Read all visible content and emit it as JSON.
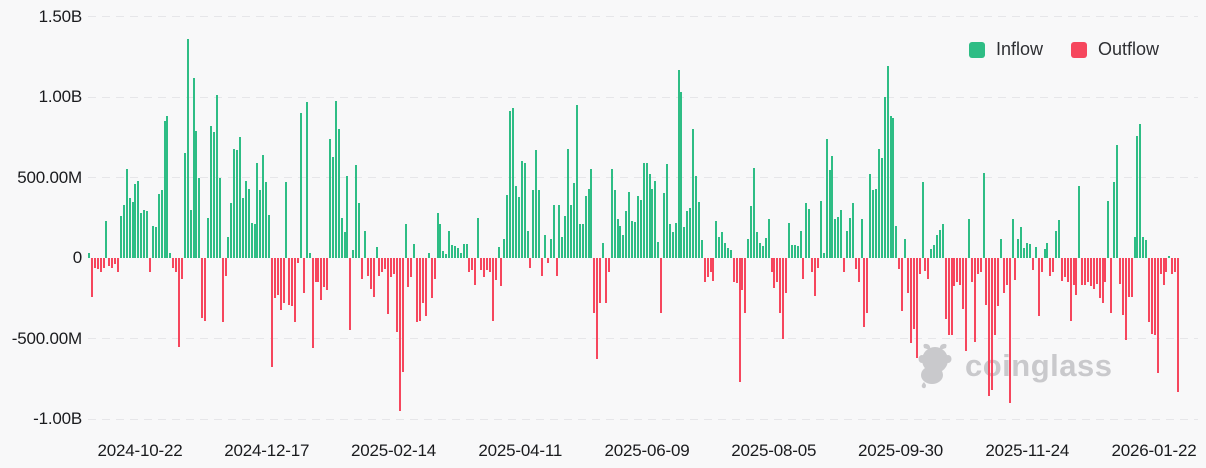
{
  "chart_data": {
    "type": "bar",
    "title": "",
    "unit": "USD",
    "value_unit": "millions USD per day",
    "grid": "dashed-horizontal",
    "legend_position": "top-right",
    "legend": [
      {
        "label": "Inflow",
        "color": "#2ebd85"
      },
      {
        "label": "Outflow",
        "color": "#f6465d"
      }
    ],
    "y_ticks": [
      {
        "label": "1.50B",
        "value": 1500
      },
      {
        "label": "1.00B",
        "value": 1000
      },
      {
        "label": "500.00M",
        "value": 500
      },
      {
        "label": "0",
        "value": 0
      },
      {
        "label": "-500.00M",
        "value": -500
      },
      {
        "label": "-1.00B",
        "value": -1000
      }
    ],
    "ylim": [
      -1000,
      1500
    ],
    "x_ticks": [
      "2024-10-22",
      "2024-12-17",
      "2025-02-14",
      "2025-04-11",
      "2025-06-09",
      "2025-08-05",
      "2025-09-30",
      "2025-11-24",
      "2026-01-22"
    ],
    "values": [
      30,
      -240,
      -60,
      -70,
      -90,
      -60,
      230,
      -50,
      -60,
      -40,
      -90,
      260,
      330,
      550,
      370,
      350,
      460,
      480,
      280,
      300,
      290,
      -90,
      200,
      190,
      400,
      420,
      850,
      880,
      30,
      -60,
      -90,
      -550,
      -130,
      650,
      1360,
      300,
      1120,
      790,
      500,
      -370,
      -390,
      250,
      820,
      780,
      1010,
      500,
      -400,
      -110,
      130,
      340,
      680,
      670,
      750,
      370,
      480,
      430,
      220,
      210,
      590,
      420,
      640,
      470,
      270,
      -680,
      -250,
      -230,
      -320,
      -280,
      470,
      -290,
      -300,
      -400,
      -30,
      900,
      -220,
      970,
      30,
      -560,
      -150,
      -150,
      -260,
      -180,
      -200,
      740,
      630,
      975,
      800,
      250,
      160,
      510,
      -450,
      50,
      580,
      340,
      -130,
      170,
      -110,
      -190,
      -240,
      70,
      -110,
      -90,
      -70,
      -350,
      -120,
      -100,
      -460,
      -950,
      -710,
      210,
      -180,
      -120,
      90,
      -400,
      -390,
      -280,
      -360,
      30,
      -250,
      -130,
      280,
      210,
      45,
      25,
      170,
      80,
      75,
      65,
      30,
      90,
      90,
      -90,
      -75,
      -170,
      250,
      -75,
      -120,
      -75,
      -90,
      -390,
      -135,
      70,
      -175,
      120,
      390,
      915,
      930,
      450,
      380,
      600,
      590,
      170,
      -60,
      420,
      670,
      420,
      -110,
      145,
      -30,
      120,
      330,
      -110,
      330,
      130,
      260,
      680,
      330,
      465,
      950,
      210,
      210,
      385,
      430,
      550,
      -340,
      -630,
      -280,
      95,
      -280,
      -90,
      555,
      420,
      240,
      200,
      140,
      290,
      410,
      230,
      225,
      385,
      360,
      590,
      590,
      520,
      430,
      480,
      100,
      -340,
      405,
      585,
      210,
      160,
      220,
      1170,
      1030,
      195,
      295,
      310,
      800,
      510,
      350,
      110,
      -150,
      -120,
      -85,
      -145,
      230,
      130,
      160,
      95,
      60,
      50,
      -150,
      -155,
      -770,
      -200,
      -340,
      115,
      320,
      560,
      160,
      95,
      75,
      125,
      240,
      -90,
      -185,
      -150,
      -340,
      -500,
      -220,
      215,
      80,
      80,
      75,
      170,
      -130,
      340,
      305,
      -90,
      -235,
      -60,
      355,
      30,
      740,
      545,
      635,
      245,
      255,
      300,
      -85,
      165,
      250,
      340,
      -70,
      -150,
      240,
      -430,
      -340,
      520,
      425,
      430,
      675,
      620,
      1000,
      1190,
      880,
      870,
      200,
      -70,
      -330,
      120,
      -220,
      -530,
      -440,
      -620,
      -100,
      470,
      -80,
      -130,
      55,
      80,
      140,
      175,
      210,
      -380,
      -480,
      -480,
      -175,
      -150,
      -165,
      -315,
      -580,
      245,
      -150,
      -520,
      -100,
      -90,
      530,
      -290,
      -860,
      -820,
      -480,
      -300,
      120,
      -220,
      -170,
      -900,
      240,
      -135,
      120,
      190,
      60,
      95,
      85,
      -75,
      70,
      -360,
      -90,
      55,
      95,
      -110,
      -85,
      170,
      235,
      -145,
      -120,
      -150,
      -390,
      -165,
      -230,
      450,
      -170,
      -165,
      -150,
      -175,
      -190,
      -160,
      -250,
      -280,
      -150,
      355,
      -340,
      470,
      700,
      -160,
      -355,
      -510,
      -245,
      -240,
      130,
      755,
      835,
      130,
      110,
      -400,
      -475,
      -480,
      -715,
      -100,
      -165,
      -90,
      15,
      -100,
      -90,
      -830
    ]
  },
  "watermark": {
    "text": "coinglass"
  }
}
